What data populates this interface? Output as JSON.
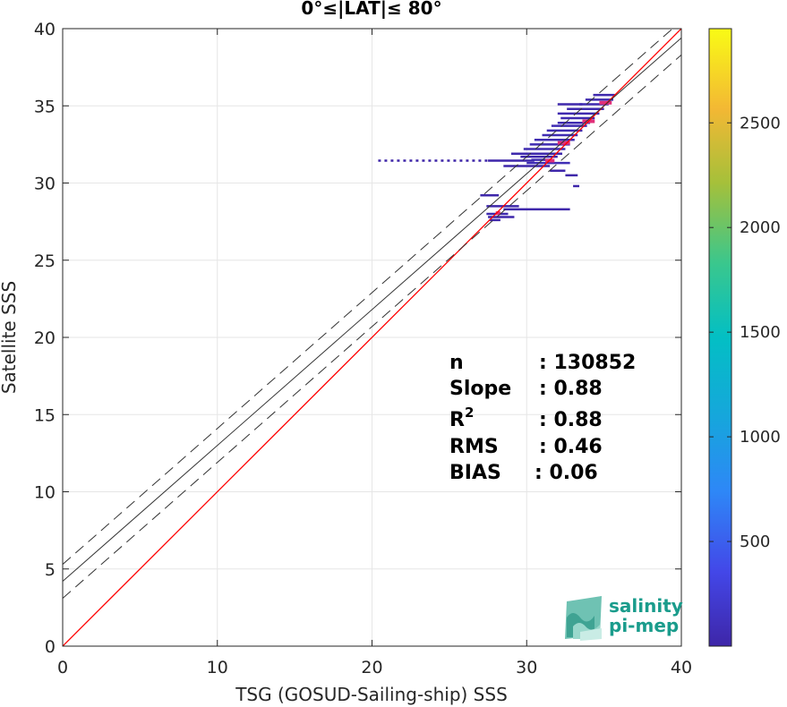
{
  "chart_data": {
    "type": "scatter",
    "title": "0°≤|LAT|≤ 80°",
    "xlabel": "TSG (GOSUD-Sailing-ship) SSS",
    "ylabel": "Satellite SSS",
    "xlim": [
      0,
      40
    ],
    "ylim": [
      0,
      40
    ],
    "xticks": [
      0,
      10,
      20,
      30,
      40
    ],
    "yticks": [
      0,
      5,
      10,
      15,
      20,
      25,
      30,
      35,
      40
    ],
    "grid": true,
    "colorbar": {
      "range": [
        0,
        2950
      ],
      "ticks": [
        500,
        1000,
        1500,
        2000,
        2500
      ],
      "colormap": "parula"
    },
    "reference_lines": {
      "identity": {
        "slope": 1,
        "intercept": 0,
        "color": "#ff0000"
      },
      "fit": {
        "slope": 0.88,
        "intercept": 4.2,
        "color": "#333333"
      },
      "fit_upper": {
        "slope": 0.88,
        "intercept": 5.3,
        "color": "#333333",
        "style": "dashed"
      },
      "fit_lower": {
        "slope": 0.88,
        "intercept": 3.1,
        "color": "#333333",
        "style": "dashed"
      }
    },
    "density_segments": [
      {
        "x1": 20.4,
        "x2": 27.5,
        "y": 31.45,
        "count": 3
      },
      {
        "x1": 27.5,
        "x2": 30.5,
        "y": 31.45,
        "count": 30
      },
      {
        "x1": 30.3,
        "x2": 31.5,
        "y": 31.5,
        "count": 150
      },
      {
        "x1": 29.6,
        "x2": 32.0,
        "y": 31.7,
        "count": 60
      },
      {
        "x1": 28.5,
        "x2": 31.5,
        "y": 31.1,
        "count": 30
      },
      {
        "x1": 29.0,
        "x2": 32.3,
        "y": 31.9,
        "count": 80
      },
      {
        "x1": 29.8,
        "x2": 32.5,
        "y": 32.2,
        "count": 120
      },
      {
        "x1": 30.2,
        "x2": 32.8,
        "y": 32.5,
        "count": 140
      },
      {
        "x1": 30.5,
        "x2": 33.1,
        "y": 32.8,
        "count": 150
      },
      {
        "x1": 31.0,
        "x2": 33.3,
        "y": 33.1,
        "count": 160
      },
      {
        "x1": 31.3,
        "x2": 33.6,
        "y": 33.4,
        "count": 150
      },
      {
        "x1": 31.6,
        "x2": 33.9,
        "y": 33.7,
        "count": 160
      },
      {
        "x1": 32.0,
        "x2": 34.1,
        "y": 33.9,
        "count": 140
      },
      {
        "x1": 32.2,
        "x2": 34.4,
        "y": 34.2,
        "count": 130
      },
      {
        "x1": 32.0,
        "x2": 34.7,
        "y": 34.5,
        "count": 110
      },
      {
        "x1": 32.6,
        "x2": 35.0,
        "y": 34.8,
        "count": 100
      },
      {
        "x1": 32.0,
        "x2": 33.6,
        "y": 35.1,
        "count": 70
      },
      {
        "x1": 33.4,
        "x2": 35.3,
        "y": 35.1,
        "count": 120
      },
      {
        "x1": 33.8,
        "x2": 35.6,
        "y": 35.4,
        "count": 90
      },
      {
        "x1": 34.3,
        "x2": 35.7,
        "y": 35.7,
        "count": 70
      },
      {
        "x1": 31.5,
        "x2": 32.5,
        "y": 30.8,
        "count": 40
      },
      {
        "x1": 30.0,
        "x2": 32.8,
        "y": 31.3,
        "count": 200
      },
      {
        "x1": 32.5,
        "x2": 33.3,
        "y": 30.5,
        "count": 20
      },
      {
        "x1": 33.0,
        "x2": 33.4,
        "y": 29.8,
        "count": 10
      },
      {
        "x1": 27.0,
        "x2": 28.2,
        "y": 29.2,
        "count": 25
      },
      {
        "x1": 27.4,
        "x2": 29.5,
        "y": 28.5,
        "count": 35
      },
      {
        "x1": 28.5,
        "x2": 32.8,
        "y": 28.3,
        "count": 45
      },
      {
        "x1": 27.4,
        "x2": 28.8,
        "y": 28.0,
        "count": 90
      },
      {
        "x1": 27.5,
        "x2": 29.2,
        "y": 27.8,
        "count": 40
      },
      {
        "x1": 27.6,
        "x2": 28.3,
        "y": 27.6,
        "count": 20
      },
      {
        "x1": 28.0,
        "x2": 28.3,
        "y": 28.05,
        "count": 2700
      },
      {
        "x1": 31.2,
        "x2": 31.8,
        "y": 31.45,
        "count": 2700
      },
      {
        "x1": 32.0,
        "x2": 32.8,
        "y": 32.6,
        "count": 2700
      },
      {
        "x1": 33.6,
        "x2": 34.4,
        "y": 34.0,
        "count": 2700
      },
      {
        "x1": 34.7,
        "x2": 35.5,
        "y": 35.2,
        "count": 2700
      }
    ]
  },
  "stats": {
    "n_label": "n",
    "n_value": ": 130852",
    "slope_label": "Slope",
    "slope_value": ": 0.88",
    "r2_label": "R",
    "r2_sup": "2",
    "r2_value": ": 0.88",
    "rms_label": "RMS",
    "rms_value": ": 0.46",
    "bias_label": "BIAS",
    "bias_value": ": 0.06"
  },
  "logo": {
    "line1": "salinity",
    "line2": "pi-mep"
  }
}
